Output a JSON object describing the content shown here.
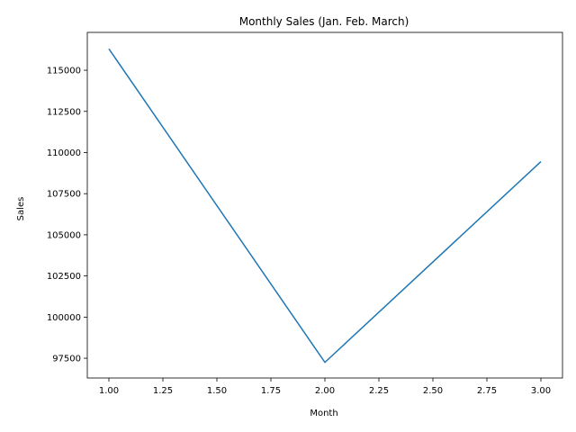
{
  "chart_data": {
    "type": "line",
    "title": "Monthly Sales (Jan. Feb. March)",
    "xlabel": "Month",
    "ylabel": "Sales",
    "xlim": [
      0.9,
      3.1
    ],
    "ylim": [
      96300,
      117300
    ],
    "xticks": [
      1.0,
      1.25,
      1.5,
      1.75,
      2.0,
      2.25,
      2.5,
      2.75,
      3.0
    ],
    "xtick_labels": [
      "1.00",
      "1.25",
      "1.50",
      "1.75",
      "2.00",
      "2.25",
      "2.50",
      "2.75",
      "3.00"
    ],
    "yticks": [
      97500,
      100000,
      102500,
      105000,
      107500,
      110000,
      112500,
      115000
    ],
    "ytick_labels": [
      "97500",
      "100000",
      "102500",
      "105000",
      "107500",
      "110000",
      "112500",
      "115000"
    ],
    "grid": false,
    "legend": "none",
    "series": [
      {
        "x": [
          1,
          2,
          3
        ],
        "y": [
          116300,
          97250,
          109450
        ],
        "color": "#1f77b4"
      }
    ]
  }
}
